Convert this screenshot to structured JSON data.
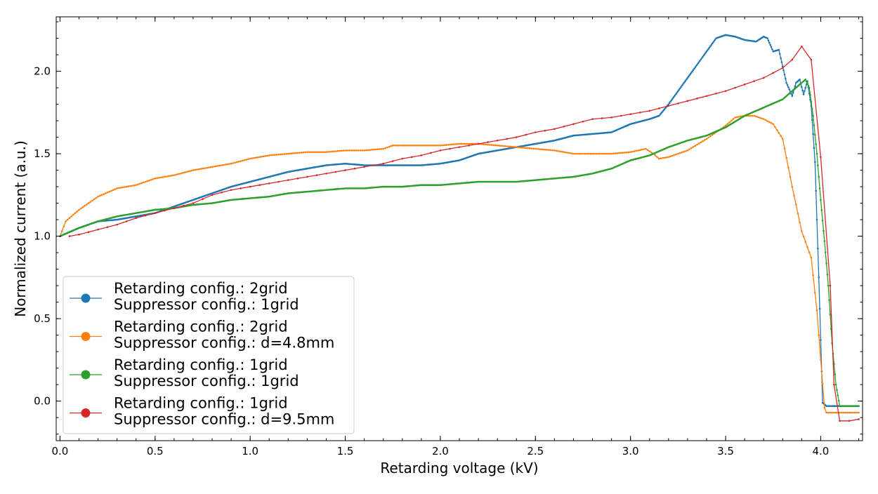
{
  "chart_data": {
    "type": "line",
    "title": "",
    "xlabel": "Retarding voltage (kV)",
    "ylabel": "Normalized current (a.u.)",
    "xlim": [
      -0.02,
      4.22
    ],
    "ylim": [
      -0.24,
      2.33
    ],
    "x_ticks": [
      "0.0",
      "0.5",
      "1.0",
      "1.5",
      "2.0",
      "2.5",
      "3.0",
      "3.5",
      "4.0"
    ],
    "y_ticks": [
      "0.0",
      "0.5",
      "1.0",
      "1.5",
      "2.0"
    ],
    "grid": false,
    "legend_position": "lower-left",
    "series": [
      {
        "name": "Retarding config.: 2grid\nSuppressor config.: 1grid",
        "legend_lines": [
          "Retarding config.: 2grid",
          "Suppressor config.: 1grid"
        ],
        "color": "#1f77b4",
        "marker_spacing": 0.005,
        "points": [
          [
            0.0,
            1.0
          ],
          [
            0.1,
            1.05
          ],
          [
            0.2,
            1.09
          ],
          [
            0.3,
            1.1
          ],
          [
            0.4,
            1.12
          ],
          [
            0.5,
            1.14
          ],
          [
            0.6,
            1.18
          ],
          [
            0.7,
            1.22
          ],
          [
            0.8,
            1.26
          ],
          [
            0.9,
            1.3
          ],
          [
            1.0,
            1.33
          ],
          [
            1.1,
            1.36
          ],
          [
            1.2,
            1.39
          ],
          [
            1.3,
            1.41
          ],
          [
            1.4,
            1.43
          ],
          [
            1.5,
            1.44
          ],
          [
            1.6,
            1.43
          ],
          [
            1.7,
            1.43
          ],
          [
            1.8,
            1.43
          ],
          [
            1.9,
            1.43
          ],
          [
            2.0,
            1.44
          ],
          [
            2.1,
            1.46
          ],
          [
            2.2,
            1.5
          ],
          [
            2.3,
            1.52
          ],
          [
            2.4,
            1.54
          ],
          [
            2.5,
            1.56
          ],
          [
            2.6,
            1.58
          ],
          [
            2.7,
            1.61
          ],
          [
            2.8,
            1.62
          ],
          [
            2.9,
            1.63
          ],
          [
            3.0,
            1.68
          ],
          [
            3.1,
            1.71
          ],
          [
            3.15,
            1.73
          ],
          [
            3.2,
            1.8
          ],
          [
            3.3,
            1.96
          ],
          [
            3.4,
            2.12
          ],
          [
            3.45,
            2.2
          ],
          [
            3.5,
            2.22
          ],
          [
            3.55,
            2.21
          ],
          [
            3.6,
            2.19
          ],
          [
            3.66,
            2.18
          ],
          [
            3.7,
            2.21
          ],
          [
            3.72,
            2.2
          ],
          [
            3.75,
            2.12
          ],
          [
            3.78,
            2.13
          ],
          [
            3.82,
            1.93
          ],
          [
            3.85,
            1.85
          ],
          [
            3.87,
            1.93
          ],
          [
            3.89,
            1.95
          ],
          [
            3.91,
            1.86
          ],
          [
            3.93,
            1.94
          ],
          [
            3.95,
            1.79
          ],
          [
            3.97,
            1.45
          ],
          [
            3.99,
            0.75
          ],
          [
            4.01,
            -0.01
          ],
          [
            4.03,
            -0.03
          ],
          [
            4.1,
            -0.03
          ],
          [
            4.2,
            -0.03
          ]
        ]
      },
      {
        "name": "Retarding config.: 2grid\nSuppressor config.: d=4.8mm",
        "legend_lines": [
          "Retarding config.: 2grid",
          "Suppressor config.: d=4.8mm"
        ],
        "color": "#ff7f0e",
        "marker_spacing": 0.01,
        "points": [
          [
            0.0,
            1.0
          ],
          [
            0.03,
            1.09
          ],
          [
            0.1,
            1.16
          ],
          [
            0.2,
            1.24
          ],
          [
            0.3,
            1.29
          ],
          [
            0.4,
            1.31
          ],
          [
            0.5,
            1.35
          ],
          [
            0.6,
            1.37
          ],
          [
            0.7,
            1.4
          ],
          [
            0.8,
            1.42
          ],
          [
            0.9,
            1.44
          ],
          [
            1.0,
            1.47
          ],
          [
            1.1,
            1.49
          ],
          [
            1.2,
            1.5
          ],
          [
            1.3,
            1.51
          ],
          [
            1.4,
            1.51
          ],
          [
            1.5,
            1.52
          ],
          [
            1.6,
            1.52
          ],
          [
            1.7,
            1.53
          ],
          [
            1.75,
            1.55
          ],
          [
            1.8,
            1.55
          ],
          [
            1.9,
            1.55
          ],
          [
            2.0,
            1.55
          ],
          [
            2.1,
            1.56
          ],
          [
            2.2,
            1.56
          ],
          [
            2.3,
            1.55
          ],
          [
            2.4,
            1.54
          ],
          [
            2.5,
            1.53
          ],
          [
            2.6,
            1.52
          ],
          [
            2.7,
            1.5
          ],
          [
            2.8,
            1.5
          ],
          [
            2.9,
            1.5
          ],
          [
            3.0,
            1.51
          ],
          [
            3.08,
            1.53
          ],
          [
            3.12,
            1.5
          ],
          [
            3.15,
            1.47
          ],
          [
            3.2,
            1.48
          ],
          [
            3.3,
            1.52
          ],
          [
            3.4,
            1.59
          ],
          [
            3.5,
            1.67
          ],
          [
            3.55,
            1.72
          ],
          [
            3.6,
            1.73
          ],
          [
            3.65,
            1.73
          ],
          [
            3.7,
            1.71
          ],
          [
            3.75,
            1.68
          ],
          [
            3.8,
            1.59
          ],
          [
            3.85,
            1.3
          ],
          [
            3.9,
            1.03
          ],
          [
            3.95,
            0.87
          ],
          [
            3.98,
            0.55
          ],
          [
            4.0,
            0.25
          ],
          [
            4.02,
            -0.04
          ],
          [
            4.03,
            -0.07
          ],
          [
            4.1,
            -0.07
          ],
          [
            4.2,
            -0.07
          ]
        ]
      },
      {
        "name": "Retarding config.: 1grid\nSuppressor config.: 1grid",
        "legend_lines": [
          "Retarding config.: 1grid",
          "Suppressor config.: 1grid"
        ],
        "color": "#2ca02c",
        "marker_spacing": 0.005,
        "points": [
          [
            0.0,
            1.0
          ],
          [
            0.1,
            1.05
          ],
          [
            0.2,
            1.09
          ],
          [
            0.3,
            1.12
          ],
          [
            0.4,
            1.14
          ],
          [
            0.5,
            1.16
          ],
          [
            0.6,
            1.17
          ],
          [
            0.7,
            1.19
          ],
          [
            0.8,
            1.2
          ],
          [
            0.9,
            1.22
          ],
          [
            1.0,
            1.23
          ],
          [
            1.1,
            1.24
          ],
          [
            1.2,
            1.26
          ],
          [
            1.3,
            1.27
          ],
          [
            1.4,
            1.28
          ],
          [
            1.5,
            1.29
          ],
          [
            1.6,
            1.29
          ],
          [
            1.7,
            1.3
          ],
          [
            1.8,
            1.3
          ],
          [
            1.9,
            1.31
          ],
          [
            2.0,
            1.31
          ],
          [
            2.1,
            1.32
          ],
          [
            2.2,
            1.33
          ],
          [
            2.3,
            1.33
          ],
          [
            2.4,
            1.33
          ],
          [
            2.5,
            1.34
          ],
          [
            2.6,
            1.35
          ],
          [
            2.7,
            1.36
          ],
          [
            2.8,
            1.38
          ],
          [
            2.9,
            1.41
          ],
          [
            3.0,
            1.46
          ],
          [
            3.1,
            1.49
          ],
          [
            3.2,
            1.54
          ],
          [
            3.3,
            1.58
          ],
          [
            3.4,
            1.61
          ],
          [
            3.5,
            1.66
          ],
          [
            3.6,
            1.73
          ],
          [
            3.7,
            1.78
          ],
          [
            3.8,
            1.83
          ],
          [
            3.85,
            1.88
          ],
          [
            3.9,
            1.93
          ],
          [
            3.92,
            1.95
          ],
          [
            3.94,
            1.9
          ],
          [
            3.96,
            1.73
          ],
          [
            3.98,
            1.5
          ],
          [
            4.0,
            1.22
          ],
          [
            4.02,
            0.97
          ],
          [
            4.04,
            0.7
          ],
          [
            4.06,
            0.35
          ],
          [
            4.08,
            0.1
          ],
          [
            4.1,
            -0.03
          ],
          [
            4.2,
            -0.03
          ]
        ]
      },
      {
        "name": "Retarding config.: 1grid\nSuppressor config.: d=9.5mm",
        "legend_lines": [
          "Retarding config.: 1grid",
          "Suppressor config.: d=9.5mm"
        ],
        "color": "#d62728",
        "marker_spacing": 0.05,
        "points": [
          [
            0.05,
            1.0
          ],
          [
            0.1,
            1.01
          ],
          [
            0.2,
            1.04
          ],
          [
            0.3,
            1.07
          ],
          [
            0.4,
            1.11
          ],
          [
            0.5,
            1.14
          ],
          [
            0.6,
            1.17
          ],
          [
            0.7,
            1.2
          ],
          [
            0.8,
            1.25
          ],
          [
            0.9,
            1.28
          ],
          [
            1.0,
            1.3
          ],
          [
            1.1,
            1.32
          ],
          [
            1.2,
            1.34
          ],
          [
            1.3,
            1.36
          ],
          [
            1.4,
            1.38
          ],
          [
            1.5,
            1.4
          ],
          [
            1.6,
            1.42
          ],
          [
            1.7,
            1.44
          ],
          [
            1.8,
            1.47
          ],
          [
            1.9,
            1.49
          ],
          [
            2.0,
            1.52
          ],
          [
            2.1,
            1.54
          ],
          [
            2.2,
            1.56
          ],
          [
            2.3,
            1.58
          ],
          [
            2.4,
            1.6
          ],
          [
            2.5,
            1.63
          ],
          [
            2.6,
            1.65
          ],
          [
            2.7,
            1.68
          ],
          [
            2.8,
            1.71
          ],
          [
            2.9,
            1.72
          ],
          [
            3.0,
            1.74
          ],
          [
            3.1,
            1.76
          ],
          [
            3.2,
            1.79
          ],
          [
            3.3,
            1.82
          ],
          [
            3.4,
            1.85
          ],
          [
            3.5,
            1.88
          ],
          [
            3.6,
            1.92
          ],
          [
            3.7,
            1.96
          ],
          [
            3.8,
            2.02
          ],
          [
            3.85,
            2.07
          ],
          [
            3.9,
            2.15
          ],
          [
            3.95,
            2.07
          ],
          [
            4.0,
            1.48
          ],
          [
            4.05,
            0.7
          ],
          [
            4.07,
            0.1
          ],
          [
            4.1,
            -0.12
          ],
          [
            4.15,
            -0.12
          ],
          [
            4.2,
            -0.11
          ]
        ]
      }
    ]
  }
}
